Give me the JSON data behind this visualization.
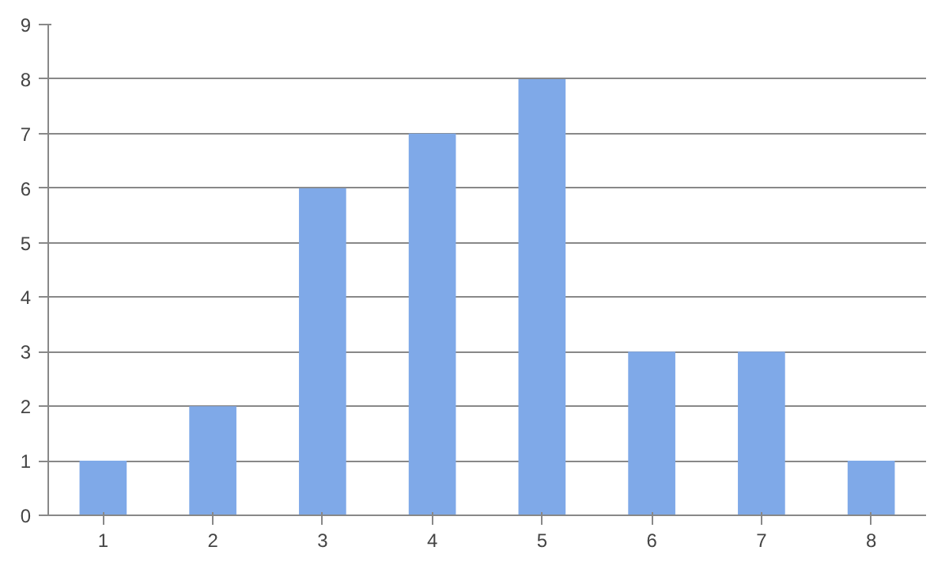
{
  "chart_data": {
    "type": "bar",
    "categories": [
      "1",
      "2",
      "3",
      "4",
      "5",
      "6",
      "7",
      "8"
    ],
    "values": [
      1,
      2,
      6,
      7,
      8,
      3,
      3,
      1
    ],
    "color": "#7fa9e8",
    "ylim": [
      0,
      9
    ],
    "yticks": [
      0,
      1,
      2,
      3,
      4,
      5,
      6,
      7,
      8,
      9
    ],
    "grid": "y"
  }
}
